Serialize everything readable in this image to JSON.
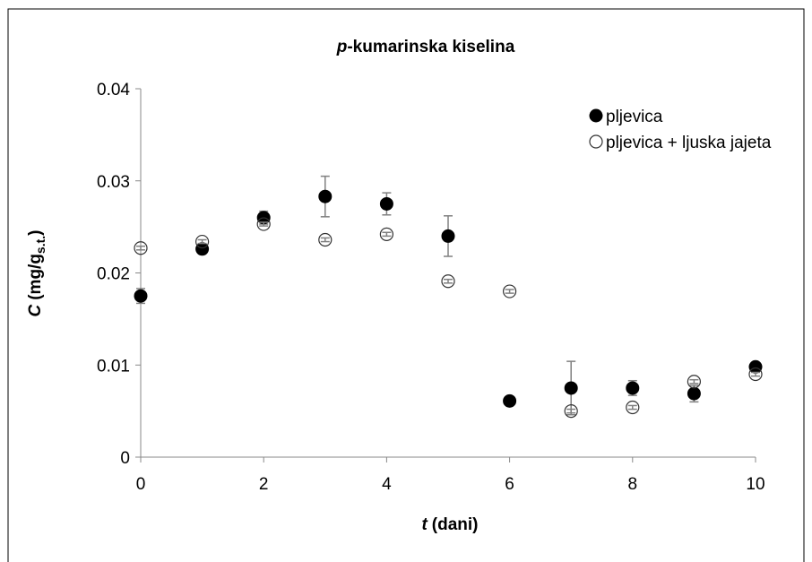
{
  "chart_data": {
    "type": "scatter",
    "title": "p-kumarinska kiselina",
    "xlabel": [
      "t",
      "(dani)"
    ],
    "ylabel": [
      "C",
      "(mg/g",
      "s.t.",
      ")"
    ],
    "xlim": [
      0,
      10
    ],
    "xticks": [
      0,
      2,
      4,
      6,
      8,
      10
    ],
    "ylim": [
      0,
      0.04
    ],
    "yticks": [
      0,
      0.01,
      0.02,
      0.03,
      0.04
    ],
    "grid": false,
    "legend": "upper right",
    "series": [
      {
        "name": "pljevica",
        "color": "#000000",
        "filled": true,
        "x": [
          0,
          1,
          2,
          3,
          4,
          5,
          6,
          7,
          8,
          9,
          10
        ],
        "values": [
          0.0175,
          0.0226,
          0.026,
          0.0283,
          0.0275,
          0.024,
          0.0061,
          0.0075,
          0.0075,
          0.0069,
          0.0098
        ],
        "errors": [
          0.0008,
          0.0003,
          0.0007,
          0.0022,
          0.0012,
          0.0022,
          0,
          0.0029,
          0.0008,
          0.0009,
          0.0002
        ]
      },
      {
        "name": "pljevica + ljuska jajeta",
        "color": "#000000",
        "filled": false,
        "x": [
          0,
          1,
          2,
          3,
          4,
          5,
          6,
          7,
          8,
          9,
          10
        ],
        "values": [
          0.0227,
          0.0234,
          0.0253,
          0.0236,
          0.0242,
          0.0191,
          0.018,
          0.005,
          0.0054,
          0.0082,
          0.009
        ],
        "errors": [
          0.0002,
          0.0002,
          0.0002,
          0.0002,
          0.0002,
          0.0002,
          0.0002,
          0.0002,
          0.0002,
          0.0002,
          0.0002
        ]
      }
    ]
  }
}
